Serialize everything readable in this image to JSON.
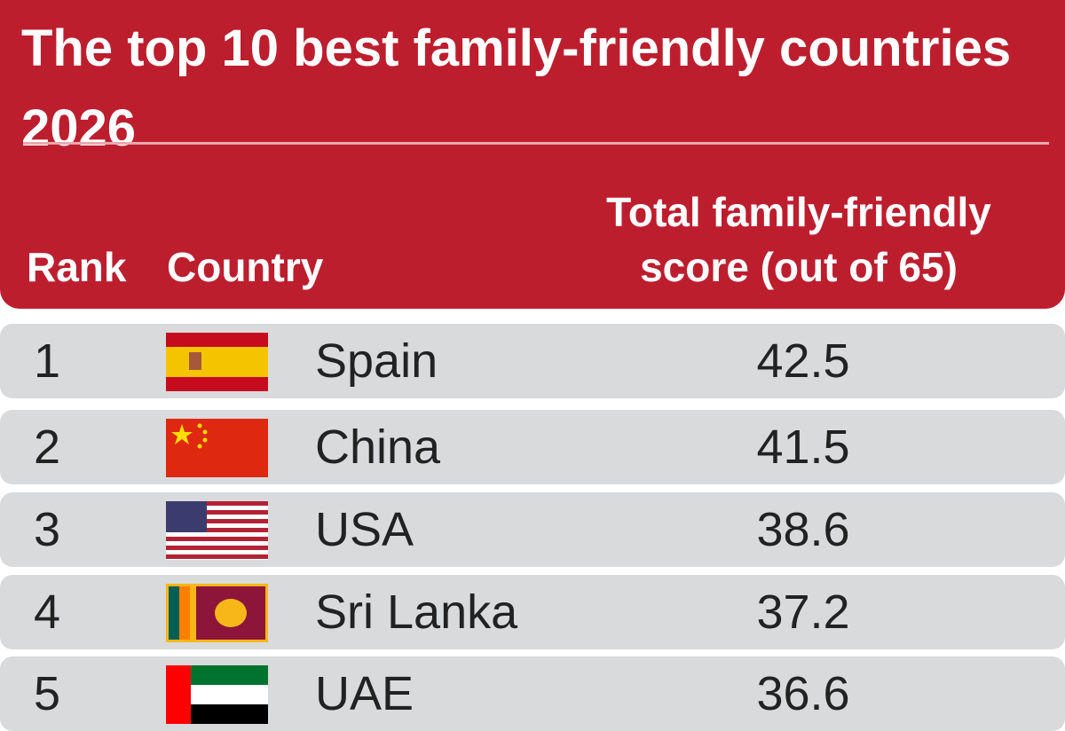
{
  "header": {
    "title": "The top 10 best family-friendly countries 2026"
  },
  "table": {
    "columns": [
      "Rank",
      "Country",
      "Total family-friendly score (out of 65)"
    ],
    "rows": [
      [
        "1",
        "Spain",
        "42.5"
      ],
      [
        "2",
        "China",
        "41.5"
      ],
      [
        "3",
        "USA",
        "38.6"
      ],
      [
        "4",
        "Sri Lanka",
        "37.2"
      ],
      [
        "5",
        "UAE",
        "36.6"
      ]
    ]
  }
}
